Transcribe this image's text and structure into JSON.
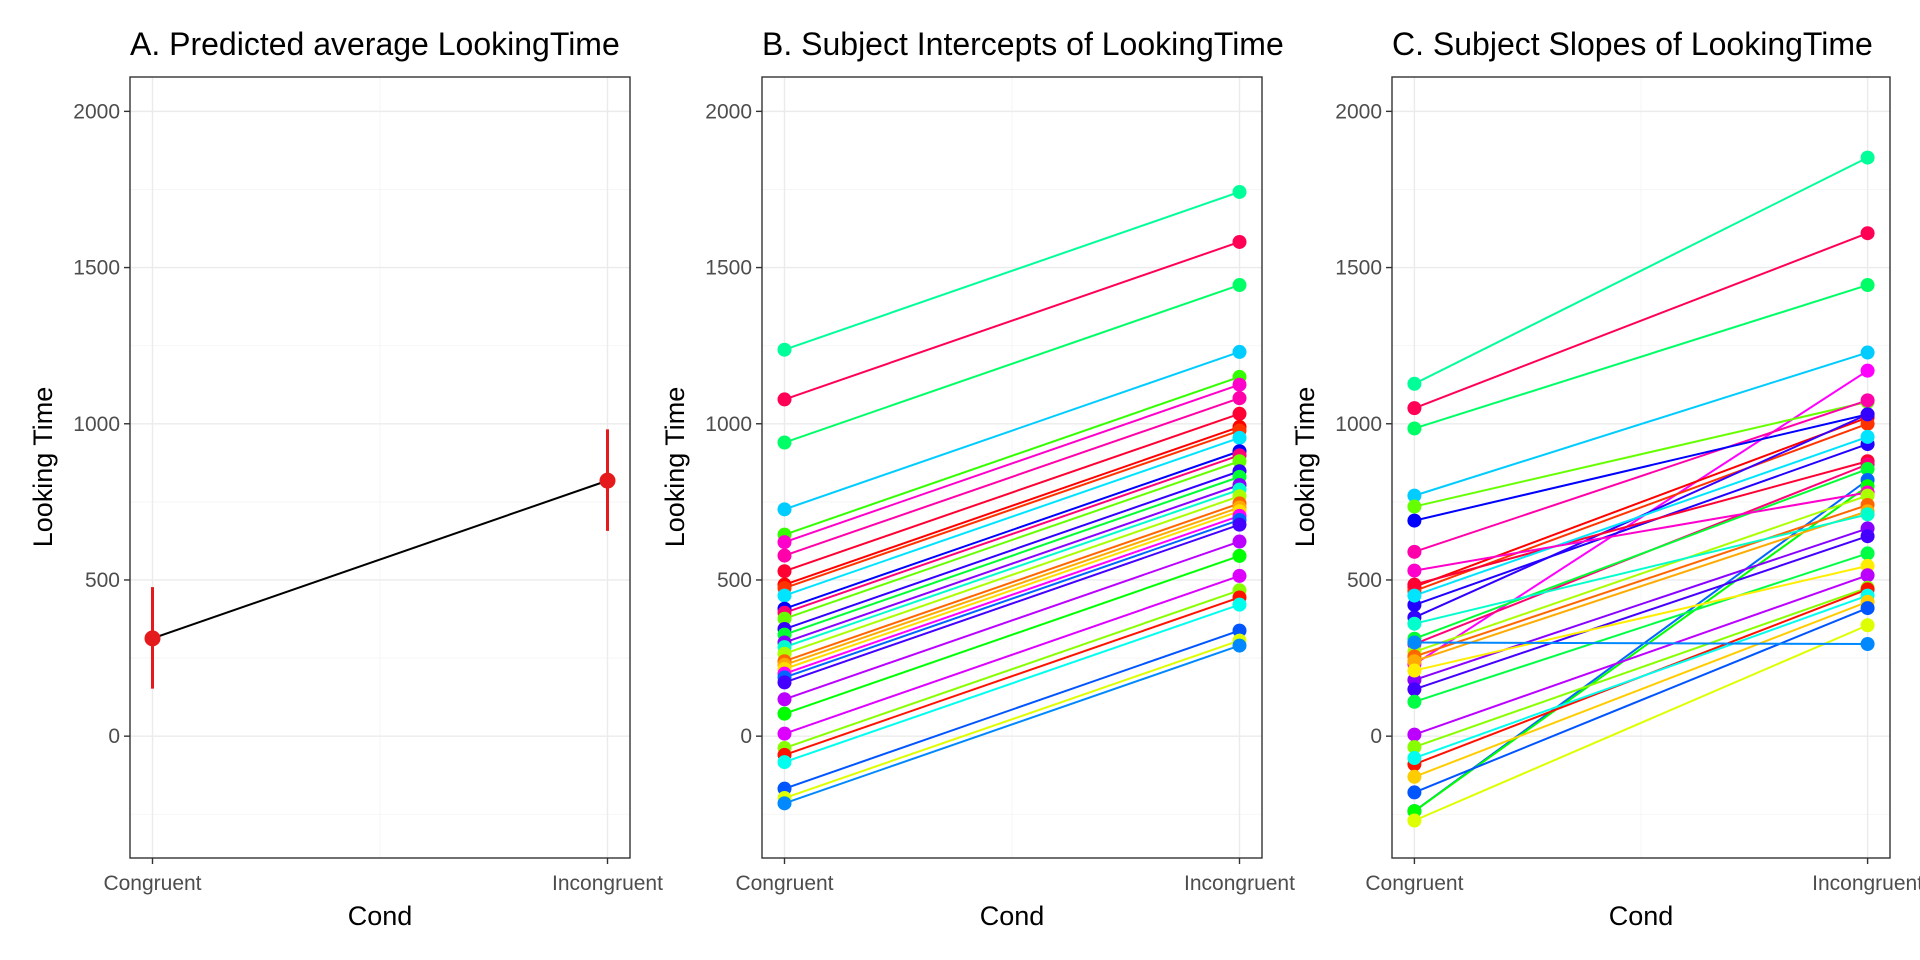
{
  "chart_data": [
    {
      "type": "line",
      "title": "A. Predicted average LookingTime",
      "xlabel": "Cond",
      "ylabel": "Looking Time",
      "categories": [
        "Congruent",
        "Incongruent"
      ],
      "yticks": [
        "0",
        "500",
        "1000",
        "1500",
        "2000"
      ],
      "ylim": [
        -390,
        2110
      ],
      "grid": true,
      "mean_line_color": "#000000",
      "point_color": "#e41a1c",
      "series": [
        {
          "values": [
            313,
            818
          ],
          "ci_low": [
            152,
            657
          ],
          "ci_high": [
            477,
            982
          ]
        }
      ]
    },
    {
      "type": "line",
      "title": "B. Subject Intercepts of LookingTime",
      "xlabel": "Cond",
      "ylabel": "Looking Time",
      "categories": [
        "Congruent",
        "Incongruent"
      ],
      "yticks": [
        "0",
        "500",
        "1000",
        "1500",
        "2000"
      ],
      "ylim": [
        -390,
        2110
      ],
      "grid": true,
      "series": [
        {
          "color": "#00ff99",
          "values": [
            1237,
            1742
          ]
        },
        {
          "color": "#ff0055",
          "values": [
            1078,
            1582
          ]
        },
        {
          "color": "#00ff66",
          "values": [
            940,
            1444
          ]
        },
        {
          "color": "#00ccff",
          "values": [
            726,
            1230
          ]
        },
        {
          "color": "#33ff00",
          "values": [
            645,
            1150
          ]
        },
        {
          "color": "#ff00cc",
          "values": [
            621,
            1125
          ]
        },
        {
          "color": "#ff00aa",
          "values": [
            578,
            1082
          ]
        },
        {
          "color": "#ff0033",
          "values": [
            528,
            1032
          ]
        },
        {
          "color": "#ff0000",
          "values": [
            485,
            990
          ]
        },
        {
          "color": "#ff3300",
          "values": [
            474,
            978
          ]
        },
        {
          "color": "#00e5ff",
          "values": [
            450,
            955
          ]
        },
        {
          "color": "#0000ff",
          "values": [
            408,
            912
          ]
        },
        {
          "color": "#ff0077",
          "values": [
            395,
            899
          ]
        },
        {
          "color": "#66ff00",
          "values": [
            376,
            880
          ]
        },
        {
          "color": "#3300ff",
          "values": [
            343,
            848
          ]
        },
        {
          "color": "#00ff33",
          "values": [
            325,
            830
          ]
        },
        {
          "color": "#8800ff",
          "values": [
            300,
            804
          ]
        },
        {
          "color": "#00ffcc",
          "values": [
            285,
            789
          ]
        },
        {
          "color": "#aaff00",
          "values": [
            264,
            768
          ]
        },
        {
          "color": "#ff6600",
          "values": [
            240,
            745
          ]
        },
        {
          "color": "#ffaa00",
          "values": [
            228,
            732
          ]
        },
        {
          "color": "#ffdd00",
          "values": [
            215,
            720
          ]
        },
        {
          "color": "#ff00ff",
          "values": [
            200,
            705
          ]
        },
        {
          "color": "#0066ff",
          "values": [
            188,
            692
          ]
        },
        {
          "color": "#4400ff",
          "values": [
            172,
            677
          ]
        },
        {
          "color": "#bb00ff",
          "values": [
            118,
            623
          ]
        },
        {
          "color": "#00ff00",
          "values": [
            72,
            577
          ]
        },
        {
          "color": "#dd00ff",
          "values": [
            8,
            513
          ]
        },
        {
          "color": "#88ff00",
          "values": [
            -38,
            467
          ]
        },
        {
          "color": "#ff1100",
          "values": [
            -60,
            444
          ]
        },
        {
          "color": "#00ffee",
          "values": [
            -83,
            421
          ]
        },
        {
          "color": "#0055ff",
          "values": [
            -168,
            338
          ]
        },
        {
          "color": "#ddff00",
          "values": [
            -198,
            306
          ]
        },
        {
          "color": "#0088ff",
          "values": [
            -215,
            290
          ]
        }
      ]
    },
    {
      "type": "line",
      "title": "C. Subject Slopes of LookingTime",
      "xlabel": "Cond",
      "ylabel": "Looking Time",
      "categories": [
        "Congruent",
        "Incongruent"
      ],
      "yticks": [
        "0",
        "500",
        "1000",
        "1500",
        "2000"
      ],
      "ylim": [
        -390,
        2110
      ],
      "grid": true,
      "series": [
        {
          "color": "#00ff99",
          "values": [
            1128,
            1852
          ]
        },
        {
          "color": "#ff0055",
          "values": [
            1050,
            1610
          ]
        },
        {
          "color": "#00ff66",
          "values": [
            985,
            1444
          ]
        },
        {
          "color": "#00ccff",
          "values": [
            770,
            1228
          ]
        },
        {
          "color": "#ff00ff",
          "values": [
            230,
            1170
          ]
        },
        {
          "color": "#66ff00",
          "values": [
            735,
            1070
          ]
        },
        {
          "color": "#ff00aa",
          "values": [
            590,
            1075
          ]
        },
        {
          "color": "#0000ff",
          "values": [
            690,
            1030
          ]
        },
        {
          "color": "#ff0000",
          "values": [
            478,
            1020
          ]
        },
        {
          "color": "#ff3300",
          "values": [
            465,
            1000
          ]
        },
        {
          "color": "#3300ff",
          "values": [
            380,
            1030
          ]
        },
        {
          "color": "#2200ff",
          "values": [
            420,
            935
          ]
        },
        {
          "color": "#ff0033",
          "values": [
            485,
            880
          ]
        },
        {
          "color": "#00e5ff",
          "values": [
            450,
            958
          ]
        },
        {
          "color": "#ff0077",
          "values": [
            295,
            870
          ]
        },
        {
          "color": "#00ff33",
          "values": [
            312,
            855
          ]
        },
        {
          "color": "#0066ff",
          "values": [
            -240,
            820
          ]
        },
        {
          "color": "#00ff00",
          "values": [
            -240,
            800
          ]
        },
        {
          "color": "#ff00cc",
          "values": [
            530,
            780
          ]
        },
        {
          "color": "#aaff00",
          "values": [
            270,
            770
          ]
        },
        {
          "color": "#ff6600",
          "values": [
            255,
            740
          ]
        },
        {
          "color": "#ffaa00",
          "values": [
            240,
            720
          ]
        },
        {
          "color": "#00ffcc",
          "values": [
            360,
            710
          ]
        },
        {
          "color": "#8800ff",
          "values": [
            180,
            665
          ]
        },
        {
          "color": "#4400ff",
          "values": [
            150,
            640
          ]
        },
        {
          "color": "#00ff44",
          "values": [
            110,
            585
          ]
        },
        {
          "color": "#ffee00",
          "values": [
            210,
            545
          ]
        },
        {
          "color": "#bb00ff",
          "values": [
            5,
            515
          ]
        },
        {
          "color": "#88ff00",
          "values": [
            -35,
            475
          ]
        },
        {
          "color": "#ff1100",
          "values": [
            -90,
            470
          ]
        },
        {
          "color": "#00ffee",
          "values": [
            -70,
            450
          ]
        },
        {
          "color": "#ffcc00",
          "values": [
            -130,
            430
          ]
        },
        {
          "color": "#0055ff",
          "values": [
            -180,
            410
          ]
        },
        {
          "color": "#ddff00",
          "values": [
            -270,
            355
          ]
        },
        {
          "color": "#0088ff",
          "values": [
            300,
            295
          ]
        }
      ]
    }
  ]
}
